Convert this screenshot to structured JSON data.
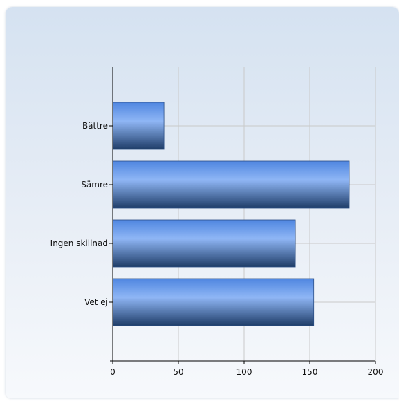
{
  "chart_data": {
    "type": "bar",
    "orientation": "horizontal",
    "title": "",
    "xlabel": "",
    "ylabel": "",
    "categories": [
      "Bättre",
      "Sämre",
      "Ingen skillnad",
      "Vet ej"
    ],
    "values": [
      39,
      180,
      139,
      153
    ],
    "xlim": [
      0,
      200
    ],
    "x_ticks": [
      0,
      50,
      100,
      150,
      200
    ],
    "grid": true,
    "legend": "none",
    "colors": {
      "bar_light": "#8fb6f5",
      "bar_mid": "#4f86e0",
      "bar_dark": "#1f3d68",
      "grid": "#c9c9c9",
      "axis": "#000000"
    }
  }
}
